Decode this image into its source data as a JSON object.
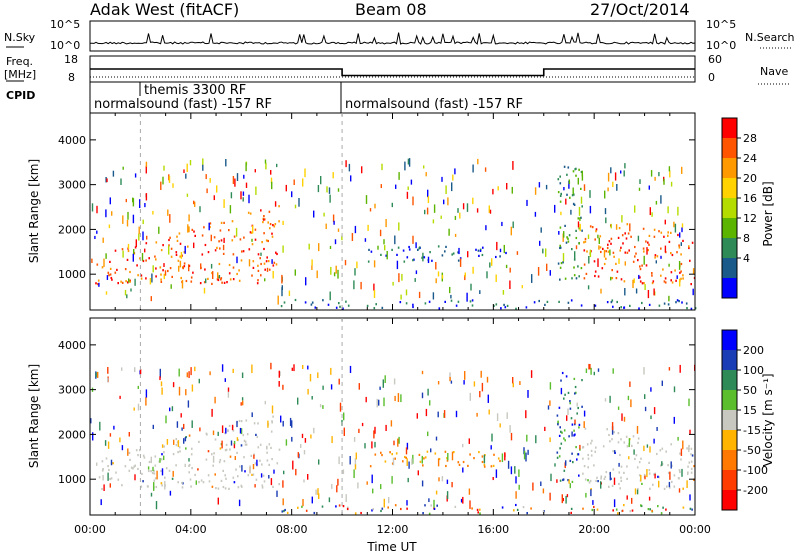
{
  "header": {
    "station": "Adak West (fitACF)",
    "beam": "Beam 08",
    "date": "27/Oct/2014"
  },
  "top_panels": {
    "nsky_label": "N.Sky",
    "nsky_ticks": [
      "10^5",
      "10^0"
    ],
    "nsearch_label": "N.Search",
    "nsearch_ticks": [
      "10^5",
      "10^0"
    ],
    "freq_label_1": "Freq.",
    "freq_label_2": "[MHz]",
    "freq_ticks": [
      "18",
      "8"
    ],
    "nave_label": "Nave",
    "nave_ticks": [
      "60",
      "0"
    ],
    "cpid_label": "CPID",
    "cpid_segments": [
      {
        "label": "normalsound (fast) -157 RF",
        "start_h": 0,
        "end_h": 10
      },
      {
        "label": "themis 3300 RF",
        "start_h": 2,
        "end_h": 10
      },
      {
        "label": "normalsound (fast) -157 RF",
        "start_h": 10,
        "end_h": 24
      }
    ],
    "freq_high_mhz": 13,
    "freq_low_mhz": 10.5,
    "freq_step_hours": [
      10,
      18
    ]
  },
  "colorbars": {
    "power": {
      "title": "Power [dB]",
      "ticks": [
        "28",
        "24",
        "20",
        "16",
        "12",
        "8",
        "4"
      ],
      "colors": [
        "#ff0000",
        "#ff5500",
        "#ff9900",
        "#ffd200",
        "#b4dc00",
        "#5ab400",
        "#2e8b57",
        "#1a5a8a",
        "#0000ff"
      ]
    },
    "velocity": {
      "title": "Velocity [m s⁻¹]",
      "ticks": [
        "200",
        "100",
        "50",
        "15",
        "-15",
        "-50",
        "-100",
        "-200"
      ],
      "colors": [
        "#0000ff",
        "#1a3cb4",
        "#2e8b57",
        "#5abe2d",
        "#c8c8c0",
        "#ffb400",
        "#ff7800",
        "#ff3c00",
        "#ff0000"
      ]
    }
  },
  "chart_data": [
    {
      "type": "heatmap",
      "name": "power",
      "ylabel": "Slant Range [km]",
      "y_ticks": [
        "1000",
        "2000",
        "3000",
        "4000"
      ],
      "ylim": [
        200,
        4600
      ],
      "x_ticks": [
        "00:00",
        "04:00",
        "08:00",
        "12:00",
        "16:00",
        "20:00",
        "00:00"
      ],
      "xlim_hours": [
        0,
        24
      ],
      "xlabel": "Time UT",
      "regions": [
        {
          "t0": 0.2,
          "t1": 7.5,
          "r0": 800,
          "r1": 2600,
          "level": "high"
        },
        {
          "t0": 11.0,
          "t1": 16.5,
          "r0": 1300,
          "r1": 1650,
          "level": "low"
        },
        {
          "t0": 18.5,
          "t1": 19.5,
          "r0": 900,
          "r1": 3500,
          "level": "mid"
        },
        {
          "t0": 19.5,
          "t1": 24.0,
          "r0": 800,
          "r1": 2300,
          "level": "high"
        },
        {
          "t0": 7.5,
          "t1": 24.0,
          "r0": 250,
          "r1": 450,
          "level": "low"
        }
      ]
    },
    {
      "type": "heatmap",
      "name": "velocity",
      "ylabel": "Slant Range [km]",
      "y_ticks": [
        "1000",
        "2000",
        "3000",
        "4000"
      ],
      "ylim": [
        200,
        4600
      ],
      "x_ticks": [
        "00:00",
        "04:00",
        "08:00",
        "12:00",
        "16:00",
        "20:00",
        "00:00"
      ],
      "xlim_hours": [
        0,
        24
      ],
      "xlabel": "Time UT",
      "regions": [
        {
          "t0": 0.2,
          "t1": 7.5,
          "r0": 800,
          "r1": 2600,
          "level": "ground"
        },
        {
          "t0": 11.0,
          "t1": 16.5,
          "r0": 1300,
          "r1": 1650,
          "level": "neg"
        },
        {
          "t0": 18.5,
          "t1": 19.5,
          "r0": 900,
          "r1": 3500,
          "level": "pos"
        },
        {
          "t0": 19.5,
          "t1": 24.0,
          "r0": 800,
          "r1": 2300,
          "level": "ground"
        },
        {
          "t0": 7.5,
          "t1": 24.0,
          "r0": 250,
          "r1": 450,
          "level": "mixed"
        }
      ]
    }
  ],
  "xlabel": "Time UT"
}
